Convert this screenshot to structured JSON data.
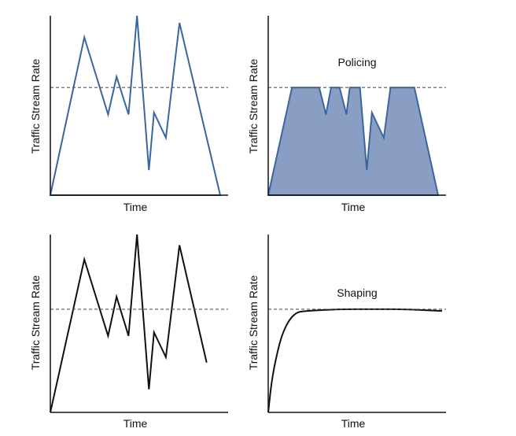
{
  "colors": {
    "blue_line": "#3a66a0",
    "blue_fill": "#8a9ec4",
    "black_line": "#111111",
    "threshold": "#555555"
  },
  "panels": [
    {
      "id": "top-left",
      "title": "",
      "ylabel": "Traffic Stream Rate",
      "xlabel": "Time",
      "style": "blue-line",
      "threshold": 0.6,
      "points": [
        [
          0,
          0
        ],
        [
          0.2,
          0.88
        ],
        [
          0.34,
          0.45
        ],
        [
          0.39,
          0.66
        ],
        [
          0.46,
          0.45
        ],
        [
          0.51,
          1.0
        ],
        [
          0.58,
          0.14
        ],
        [
          0.61,
          0.46
        ],
        [
          0.68,
          0.32
        ],
        [
          0.76,
          0.96
        ],
        [
          1.0,
          0.0
        ]
      ]
    },
    {
      "id": "top-right",
      "title": "Policing",
      "ylabel": "Traffic Stream Rate",
      "xlabel": "Time",
      "style": "blue-fill",
      "threshold": 0.6,
      "points": [
        [
          0,
          0
        ],
        [
          0.14,
          0.6
        ],
        [
          0.3,
          0.6
        ],
        [
          0.34,
          0.45
        ],
        [
          0.37,
          0.6
        ],
        [
          0.42,
          0.6
        ],
        [
          0.46,
          0.45
        ],
        [
          0.48,
          0.6
        ],
        [
          0.54,
          0.6
        ],
        [
          0.58,
          0.14
        ],
        [
          0.61,
          0.46
        ],
        [
          0.68,
          0.32
        ],
        [
          0.72,
          0.6
        ],
        [
          0.86,
          0.6
        ],
        [
          1.0,
          0.0
        ]
      ]
    },
    {
      "id": "bottom-left",
      "title": "",
      "ylabel": "Traffic Stream Rate",
      "xlabel": "Time",
      "style": "black-line",
      "threshold": 0.58,
      "points": [
        [
          0,
          0
        ],
        [
          0.2,
          0.86
        ],
        [
          0.34,
          0.43
        ],
        [
          0.39,
          0.65
        ],
        [
          0.46,
          0.43
        ],
        [
          0.51,
          1.0
        ],
        [
          0.58,
          0.13
        ],
        [
          0.61,
          0.45
        ],
        [
          0.68,
          0.31
        ],
        [
          0.76,
          0.94
        ],
        [
          0.92,
          0.28
        ]
      ]
    },
    {
      "id": "bottom-right",
      "title": "Shaping",
      "ylabel": "Traffic Stream Rate",
      "xlabel": "Time",
      "style": "black-curve",
      "threshold": 0.58,
      "points": [
        [
          0,
          0
        ],
        [
          0.02,
          0.18
        ],
        [
          0.05,
          0.33
        ],
        [
          0.08,
          0.44
        ],
        [
          0.12,
          0.52
        ],
        [
          0.16,
          0.56
        ],
        [
          0.2,
          0.57
        ],
        [
          0.4,
          0.58
        ],
        [
          0.6,
          0.58
        ],
        [
          0.8,
          0.58
        ],
        [
          1.0,
          0.57
        ]
      ]
    }
  ]
}
